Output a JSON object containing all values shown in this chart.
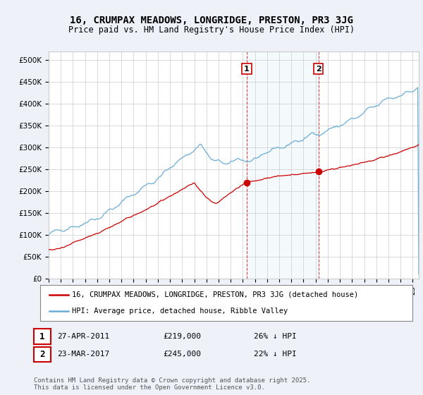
{
  "title": "16, CRUMPAX MEADOWS, LONGRIDGE, PRESTON, PR3 3JG",
  "subtitle": "Price paid vs. HM Land Registry's House Price Index (HPI)",
  "ylabel_ticks": [
    "£0",
    "£50K",
    "£100K",
    "£150K",
    "£200K",
    "£250K",
    "£300K",
    "£350K",
    "£400K",
    "£450K",
    "£500K"
  ],
  "ytick_values": [
    0,
    50000,
    100000,
    150000,
    200000,
    250000,
    300000,
    350000,
    400000,
    450000,
    500000
  ],
  "ylim": [
    0,
    520000
  ],
  "xlim_start": 1995.0,
  "xlim_end": 2025.5,
  "hpi_color": "#6aaed6",
  "price_color": "#cc0000",
  "sale1_date": "27-APR-2011",
  "sale1_price": 219000,
  "sale1_pct": "26% ↓ HPI",
  "sale1_x": 2011.32,
  "sale2_date": "23-MAR-2017",
  "sale2_price": 245000,
  "sale2_pct": "22% ↓ HPI",
  "sale2_x": 2017.23,
  "legend_house_label": "16, CRUMPAX MEADOWS, LONGRIDGE, PRESTON, PR3 3JG (detached house)",
  "legend_hpi_label": "HPI: Average price, detached house, Ribble Valley",
  "footer": "Contains HM Land Registry data © Crown copyright and database right 2025.\nThis data is licensed under the Open Government Licence v3.0.",
  "background_color": "#eef2f8",
  "plot_bg_color": "#ffffff",
  "grid_color": "#cccccc",
  "vline_color": "#cc0000",
  "annotation_box_color": "#cc0000",
  "title_fontsize": 10,
  "subtitle_fontsize": 8.5,
  "tick_fontsize": 7.5,
  "legend_fontsize": 7.5,
  "footer_fontsize": 6.5
}
